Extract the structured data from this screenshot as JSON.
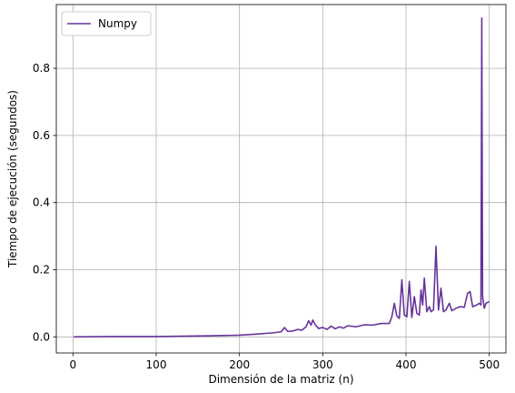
{
  "chart_data": {
    "type": "line",
    "title": "",
    "xlabel": "Dimensión de la matriz (n)",
    "ylabel": "Tiempo de ejecución (segundos)",
    "xlim": [
      -20,
      520
    ],
    "ylim": [
      -0.048,
      0.99
    ],
    "xticks": [
      0,
      100,
      200,
      300,
      400,
      500
    ],
    "yticks": [
      0.0,
      0.2,
      0.4,
      0.6,
      0.8
    ],
    "grid": true,
    "legend_position": "top-left",
    "series": [
      {
        "name": "Numpy",
        "color": "#663399",
        "points": [
          [
            1,
            0.0
          ],
          [
            50,
            0.001
          ],
          [
            100,
            0.001
          ],
          [
            130,
            0.002
          ],
          [
            160,
            0.003
          ],
          [
            180,
            0.004
          ],
          [
            200,
            0.005
          ],
          [
            220,
            0.008
          ],
          [
            240,
            0.012
          ],
          [
            250,
            0.015
          ],
          [
            254,
            0.028
          ],
          [
            258,
            0.016
          ],
          [
            265,
            0.018
          ],
          [
            270,
            0.022
          ],
          [
            275,
            0.02
          ],
          [
            280,
            0.03
          ],
          [
            283,
            0.048
          ],
          [
            286,
            0.035
          ],
          [
            288,
            0.05
          ],
          [
            291,
            0.036
          ],
          [
            295,
            0.025
          ],
          [
            300,
            0.028
          ],
          [
            305,
            0.022
          ],
          [
            310,
            0.032
          ],
          [
            315,
            0.024
          ],
          [
            320,
            0.03
          ],
          [
            325,
            0.026
          ],
          [
            330,
            0.033
          ],
          [
            340,
            0.03
          ],
          [
            350,
            0.036
          ],
          [
            360,
            0.035
          ],
          [
            370,
            0.04
          ],
          [
            380,
            0.04
          ],
          [
            383,
            0.06
          ],
          [
            386,
            0.1
          ],
          [
            389,
            0.062
          ],
          [
            392,
            0.055
          ],
          [
            395,
            0.17
          ],
          [
            398,
            0.065
          ],
          [
            401,
            0.06
          ],
          [
            404,
            0.165
          ],
          [
            407,
            0.058
          ],
          [
            410,
            0.12
          ],
          [
            413,
            0.07
          ],
          [
            416,
            0.065
          ],
          [
            418,
            0.14
          ],
          [
            420,
            0.095
          ],
          [
            422,
            0.175
          ],
          [
            425,
            0.075
          ],
          [
            428,
            0.09
          ],
          [
            430,
            0.075
          ],
          [
            433,
            0.08
          ],
          [
            436,
            0.27
          ],
          [
            439,
            0.08
          ],
          [
            442,
            0.145
          ],
          [
            445,
            0.075
          ],
          [
            448,
            0.08
          ],
          [
            452,
            0.1
          ],
          [
            455,
            0.078
          ],
          [
            460,
            0.085
          ],
          [
            465,
            0.09
          ],
          [
            470,
            0.088
          ],
          [
            474,
            0.13
          ],
          [
            477,
            0.135
          ],
          [
            480,
            0.09
          ],
          [
            485,
            0.095
          ],
          [
            488,
            0.1
          ],
          [
            490,
            0.095
          ],
          [
            491,
            0.95
          ],
          [
            492,
            0.12
          ],
          [
            494,
            0.085
          ],
          [
            496,
            0.1
          ],
          [
            500,
            0.105
          ]
        ]
      }
    ]
  }
}
